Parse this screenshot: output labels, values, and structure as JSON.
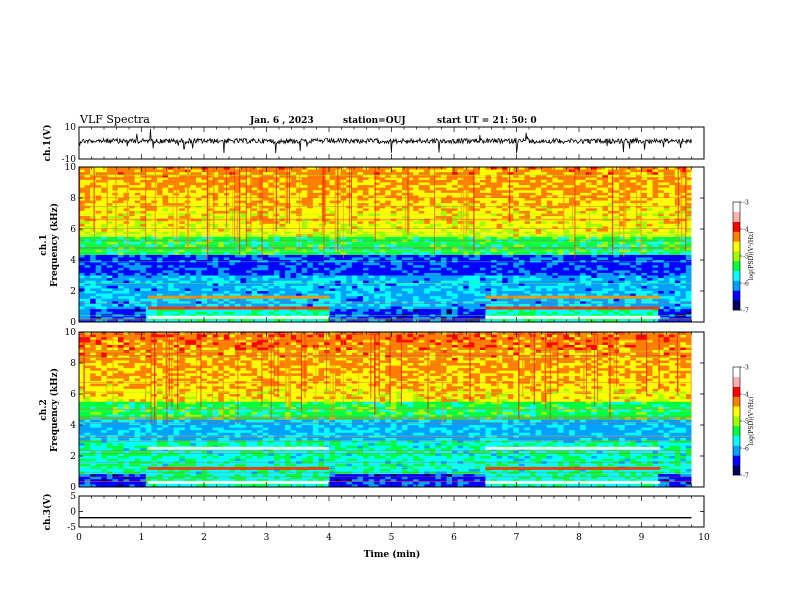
{
  "header": {
    "title": "VLF Spectra",
    "date": "Jan. 6 , 2023",
    "station": "station=OUJ",
    "start": "start UT =  21: 50: 0"
  },
  "chart_data": {
    "type": "heatmap",
    "x_label": "Time (min)",
    "x_range": [
      0,
      10
    ],
    "x_ticks": [
      "0",
      "1",
      "2",
      "3",
      "4",
      "5",
      "6",
      "7",
      "8",
      "9",
      "10"
    ],
    "data_end_min": 9.8,
    "panels": [
      {
        "id": "ch1-waveform",
        "kind": "waveform",
        "ylabel": "ch.1(V)",
        "y_range": [
          -10,
          10
        ],
        "y_ticks": [
          "10",
          "-10"
        ]
      },
      {
        "id": "ch1-spectrogram",
        "kind": "spectrogram",
        "ylabel": "ch.1\nFrequency (kHz)",
        "y_range": [
          0,
          10
        ],
        "y_ticks": [
          "0",
          "2",
          "4",
          "6",
          "8",
          "10"
        ],
        "colorbar": {
          "label": "log(PSD)(V²/Hz)",
          "range": [
            -7,
            -3
          ],
          "ticks": [
            "-3",
            "-4",
            "-5",
            "-6",
            "-7"
          ]
        }
      },
      {
        "id": "ch2-spectrogram",
        "kind": "spectrogram",
        "ylabel": "ch.2\nFrequency (kHz)",
        "y_range": [
          0,
          10
        ],
        "y_ticks": [
          "0",
          "2",
          "4",
          "6",
          "8",
          "10"
        ],
        "colorbar": {
          "label": "log(PSD)(V²/Hz)",
          "range": [
            -7,
            -3
          ],
          "ticks": [
            "-3",
            "-4",
            "-5",
            "-6",
            "-7"
          ]
        }
      },
      {
        "id": "ch3-waveform",
        "kind": "waveform",
        "ylabel": "ch.3(V)",
        "y_range": [
          -5,
          5
        ],
        "y_ticks": [
          "5",
          "0",
          "-5"
        ],
        "constant_level": -2
      }
    ],
    "regimes_min": [
      1.1,
      4.0,
      6.5,
      9.3
    ],
    "colormap": [
      "#000060",
      "#0000ff",
      "#00a0ff",
      "#00ffff",
      "#00ff40",
      "#a0ff00",
      "#ffff00",
      "#ff8000",
      "#ff0000",
      "#ffb0b0",
      "#ffffff"
    ]
  }
}
